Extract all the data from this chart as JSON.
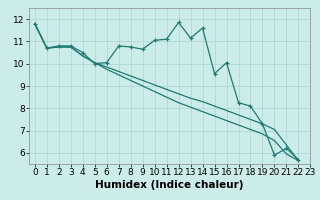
{
  "xlabel": "Humidex (Indice chaleur)",
  "bg_color": "#ccecea",
  "grid_color": "#aad4d2",
  "line_color": "#1e7a72",
  "xlim": [
    -0.5,
    23
  ],
  "ylim": [
    5.5,
    12.5
  ],
  "xticks": [
    0,
    1,
    2,
    3,
    4,
    5,
    6,
    7,
    8,
    9,
    10,
    11,
    12,
    13,
    14,
    15,
    16,
    17,
    18,
    19,
    20,
    21,
    22,
    23
  ],
  "yticks": [
    6,
    7,
    8,
    9,
    10,
    11,
    12
  ],
  "series_main": [
    11.8,
    10.7,
    10.8,
    10.8,
    10.5,
    10.0,
    10.05,
    10.8,
    10.75,
    10.65,
    11.05,
    11.1,
    11.85,
    11.15,
    11.6,
    9.55,
    10.05,
    8.25,
    8.1,
    7.3,
    5.9,
    6.2,
    5.7
  ],
  "series_line2": [
    11.8,
    10.7,
    10.75,
    10.75,
    10.35,
    10.05,
    9.85,
    9.65,
    9.45,
    9.25,
    9.05,
    8.85,
    8.65,
    8.45,
    8.3,
    8.1,
    7.9,
    7.7,
    7.5,
    7.3,
    7.05,
    6.35,
    5.65
  ],
  "series_line3": [
    11.8,
    10.7,
    10.75,
    10.75,
    10.35,
    10.05,
    9.75,
    9.5,
    9.25,
    9.0,
    8.75,
    8.5,
    8.25,
    8.05,
    7.85,
    7.65,
    7.45,
    7.25,
    7.05,
    6.85,
    6.55,
    5.95,
    5.65
  ],
  "linewidth": 0.9,
  "fontsize_ticks": 6.5,
  "fontsize_label": 7.5
}
